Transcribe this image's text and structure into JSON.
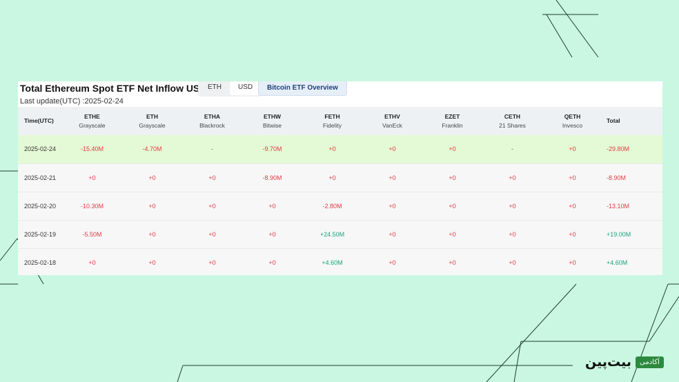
{
  "panel": {
    "title": "Total Ethereum Spot ETF Net Inflow USD",
    "last_update": "Last update(UTC) :2025-02-24",
    "toggle": [
      {
        "label": "ETH",
        "active": false
      },
      {
        "label": "USD",
        "active": true
      }
    ],
    "overview_button": "Bitcoin ETF Overview"
  },
  "table": {
    "time_header": "Time(UTC)",
    "total_header": "Total",
    "funds": [
      {
        "ticker": "ETHE",
        "issuer": "Grayscale"
      },
      {
        "ticker": "ETH",
        "issuer": "Grayscale"
      },
      {
        "ticker": "ETHA",
        "issuer": "Blackrock"
      },
      {
        "ticker": "ETHW",
        "issuer": "Bitwise"
      },
      {
        "ticker": "FETH",
        "issuer": "Fidelity"
      },
      {
        "ticker": "ETHV",
        "issuer": "VanEck"
      },
      {
        "ticker": "EZET",
        "issuer": "Franklin"
      },
      {
        "ticker": "CETH",
        "issuer": "21 Shares"
      },
      {
        "ticker": "QETH",
        "issuer": "Invesco"
      }
    ],
    "rows": [
      {
        "date": "2025-02-24",
        "highlight": true,
        "values": [
          "-15.40M",
          "-4.70M",
          "-",
          "-9.70M",
          "+0",
          "+0",
          "+0",
          "-",
          "+0"
        ],
        "total": "-29.80M"
      },
      {
        "date": "2025-02-21",
        "highlight": false,
        "values": [
          "+0",
          "+0",
          "+0",
          "-8.90M",
          "+0",
          "+0",
          "+0",
          "+0",
          "+0"
        ],
        "total": "-8.90M"
      },
      {
        "date": "2025-02-20",
        "highlight": false,
        "values": [
          "-10.30M",
          "+0",
          "+0",
          "+0",
          "-2.80M",
          "+0",
          "+0",
          "+0",
          "+0"
        ],
        "total": "-13.10M"
      },
      {
        "date": "2025-02-19",
        "highlight": false,
        "values": [
          "-5.50M",
          "+0",
          "+0",
          "+0",
          "+24.50M",
          "+0",
          "+0",
          "+0",
          "+0"
        ],
        "total": "+19.00M"
      },
      {
        "date": "2025-02-18",
        "highlight": false,
        "values": [
          "+0",
          "+0",
          "+0",
          "+0",
          "+4.60M",
          "+0",
          "+0",
          "+0",
          "+0"
        ],
        "total": "+4.60M"
      }
    ]
  },
  "logo": {
    "word": "بیت‌پین",
    "badge": "آکادمی"
  },
  "colors": {
    "background": "#c9f7e1",
    "negative": "#e23b44",
    "positive": "#18a37a",
    "highlight_row": "#e4f9d5",
    "logo_badge": "#2c8a3f"
  }
}
